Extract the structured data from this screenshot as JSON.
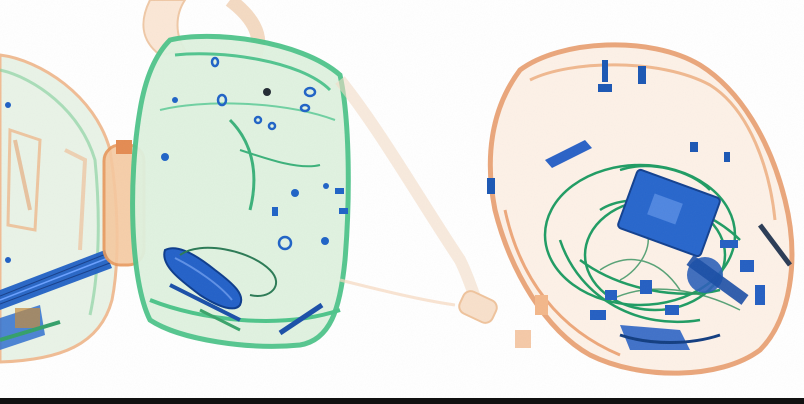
{
  "image": {
    "kind": "x-ray baggage scan",
    "background": "#ffffff",
    "colors": {
      "organic": "#e0915a",
      "mixed": "#3dbb7a",
      "metal": "#1f63c6",
      "edge_band": "#111111"
    },
    "objects": [
      {
        "name": "partial-bag-left",
        "material": "mixed"
      },
      {
        "name": "green-backpack-center",
        "material": "mixed"
      },
      {
        "name": "orange-bag-right",
        "material": "organic"
      }
    ]
  }
}
